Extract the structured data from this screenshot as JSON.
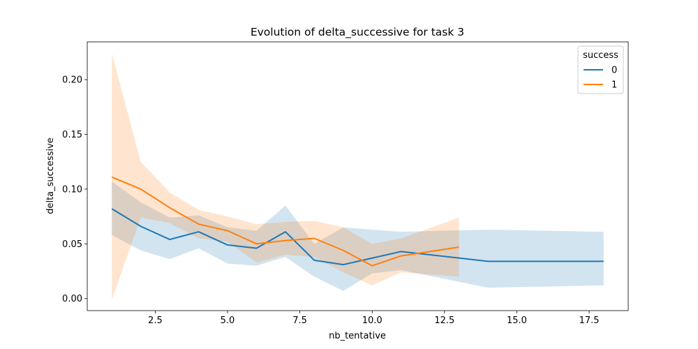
{
  "chart_data": {
    "type": "line",
    "title": "Evolution of delta_successive for task 3",
    "xlabel": "nb_tentative",
    "ylabel": "delta_successive",
    "xlim": [
      0.15,
      18.85
    ],
    "ylim": [
      -0.011,
      0.2345
    ],
    "x_ticks": [
      2.5,
      5.0,
      7.5,
      10.0,
      12.5,
      15.0,
      17.5
    ],
    "x_tick_labels": [
      "2.5",
      "5.0",
      "7.5",
      "10.0",
      "12.5",
      "15.0",
      "17.5"
    ],
    "y_ticks": [
      0.0,
      0.05,
      0.1,
      0.15,
      0.2
    ],
    "y_tick_labels": [
      "0.00",
      "0.05",
      "0.10",
      "0.15",
      "0.20"
    ],
    "grid": false,
    "legend": {
      "title": "success",
      "placement": "top-right"
    },
    "series": [
      {
        "name": "0",
        "color": "#1f77b4",
        "x": [
          1,
          2,
          3,
          4,
          5,
          6,
          7,
          8,
          9,
          10,
          11,
          14,
          18
        ],
        "y": [
          0.082,
          0.066,
          0.054,
          0.061,
          0.049,
          0.046,
          0.061,
          0.035,
          0.031,
          0.037,
          0.043,
          0.034,
          0.034
        ],
        "lower": [
          0.058,
          0.044,
          0.036,
          0.046,
          0.032,
          0.03,
          0.038,
          0.02,
          0.007,
          0.023,
          0.026,
          0.01,
          0.012
        ],
        "upper": [
          0.107,
          0.088,
          0.074,
          0.076,
          0.065,
          0.062,
          0.085,
          0.05,
          0.065,
          0.063,
          0.061,
          0.063,
          0.061
        ]
      },
      {
        "name": "1",
        "color": "#ff7f0e",
        "x": [
          1,
          2,
          3,
          4,
          5,
          6,
          7,
          8,
          9,
          10,
          11,
          13
        ],
        "y": [
          0.111,
          0.1,
          0.083,
          0.068,
          0.062,
          0.05,
          0.053,
          0.055,
          0.044,
          0.03,
          0.039,
          0.047
        ],
        "lower": [
          -0.001,
          0.074,
          0.069,
          0.055,
          0.052,
          0.033,
          0.04,
          0.038,
          0.024,
          0.012,
          0.024,
          0.02
        ],
        "upper": [
          0.224,
          0.125,
          0.097,
          0.081,
          0.075,
          0.068,
          0.07,
          0.071,
          0.065,
          0.05,
          0.055,
          0.074
        ]
      }
    ]
  }
}
